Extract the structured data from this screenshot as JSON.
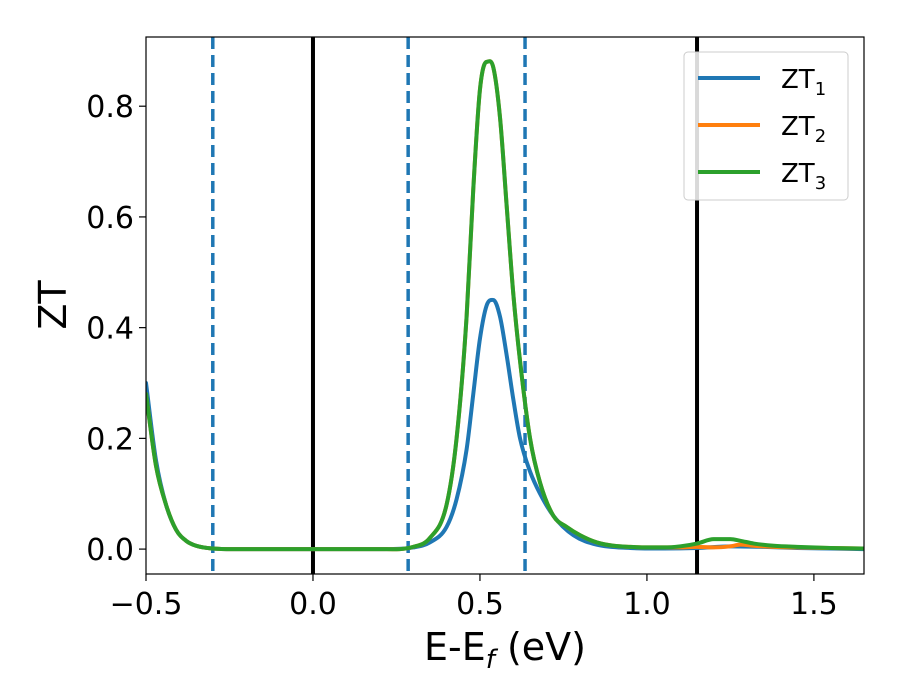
{
  "chart_data": {
    "type": "line",
    "xlabel": "E-E",
    "xlabel_sub": "f",
    "xlabel_unit": " (eV)",
    "ylabel": "ZT",
    "xlim": [
      -0.5,
      1.65
    ],
    "ylim": [
      -0.045,
      0.925
    ],
    "xticks": [
      -0.5,
      0.0,
      0.5,
      1.0,
      1.5
    ],
    "xtick_labels": [
      "−0.5",
      "0.0",
      "0.5",
      "1.0",
      "1.5"
    ],
    "yticks": [
      0.0,
      0.2,
      0.4,
      0.6,
      0.8
    ],
    "ytick_labels": [
      "0.0",
      "0.2",
      "0.4",
      "0.6",
      "0.8"
    ],
    "grid": false,
    "legend_position": "top-right",
    "vlines": [
      {
        "x": -0.3,
        "style": "dashed",
        "color": "#1f77b4"
      },
      {
        "x": 0.0,
        "style": "solid",
        "color": "#000000"
      },
      {
        "x": 0.285,
        "style": "dashed",
        "color": "#1f77b4"
      },
      {
        "x": 0.635,
        "style": "dashed",
        "color": "#1f77b4"
      },
      {
        "x": 1.15,
        "style": "solid",
        "color": "#000000"
      }
    ],
    "series": [
      {
        "name": "ZT",
        "sub": "1",
        "color": "#1f77b4",
        "x": [
          -0.5,
          -0.47,
          -0.44,
          -0.41,
          -0.38,
          -0.35,
          -0.3,
          -0.2,
          0.0,
          0.2,
          0.3,
          0.35,
          0.4,
          0.43,
          0.46,
          0.48,
          0.5,
          0.52,
          0.54,
          0.56,
          0.58,
          0.6,
          0.62,
          0.65,
          0.68,
          0.72,
          0.78,
          0.85,
          0.95,
          1.05,
          1.15,
          1.25,
          1.35,
          1.45,
          1.55,
          1.65
        ],
        "values": [
          0.3,
          0.16,
          0.08,
          0.035,
          0.015,
          0.006,
          0.001,
          0.0,
          0.0,
          0.0,
          0.003,
          0.012,
          0.04,
          0.09,
          0.18,
          0.28,
          0.38,
          0.44,
          0.45,
          0.42,
          0.35,
          0.27,
          0.2,
          0.14,
          0.1,
          0.06,
          0.025,
          0.008,
          0.002,
          0.001,
          0.002,
          0.005,
          0.004,
          0.002,
          0.001,
          0.0
        ]
      },
      {
        "name": "ZT",
        "sub": "2",
        "color": "#ff7f0e",
        "x": [
          -0.5,
          -0.47,
          -0.44,
          -0.41,
          -0.38,
          -0.35,
          -0.3,
          -0.2,
          0.0,
          0.2,
          0.3,
          0.35,
          0.4,
          0.43,
          0.46,
          0.48,
          0.5,
          0.52,
          0.54,
          0.56,
          0.58,
          0.6,
          0.62,
          0.65,
          0.68,
          0.72,
          0.76,
          0.8,
          0.85,
          0.9,
          0.95,
          1.0,
          1.05,
          1.1,
          1.15,
          1.2,
          1.25,
          1.28,
          1.32,
          1.38,
          1.45,
          1.55,
          1.65
        ],
        "values": [
          0.28,
          0.15,
          0.08,
          0.035,
          0.015,
          0.006,
          0.001,
          0.0,
          0.0,
          0.0,
          0.004,
          0.02,
          0.08,
          0.2,
          0.42,
          0.65,
          0.83,
          0.88,
          0.87,
          0.78,
          0.62,
          0.46,
          0.34,
          0.2,
          0.12,
          0.06,
          0.04,
          0.025,
          0.012,
          0.006,
          0.004,
          0.003,
          0.003,
          0.003,
          0.004,
          0.003,
          0.005,
          0.008,
          0.006,
          0.004,
          0.003,
          0.002,
          0.001
        ]
      },
      {
        "name": "ZT",
        "sub": "3",
        "color": "#2ca02c",
        "x": [
          -0.5,
          -0.47,
          -0.44,
          -0.41,
          -0.38,
          -0.35,
          -0.3,
          -0.2,
          0.0,
          0.2,
          0.3,
          0.35,
          0.4,
          0.43,
          0.46,
          0.48,
          0.5,
          0.52,
          0.54,
          0.56,
          0.58,
          0.6,
          0.62,
          0.65,
          0.68,
          0.72,
          0.76,
          0.8,
          0.85,
          0.9,
          0.95,
          1.0,
          1.05,
          1.1,
          1.15,
          1.2,
          1.25,
          1.28,
          1.32,
          1.38,
          1.45,
          1.55,
          1.65
        ],
        "values": [
          0.28,
          0.15,
          0.08,
          0.035,
          0.015,
          0.006,
          0.001,
          0.0,
          0.0,
          0.0,
          0.004,
          0.02,
          0.08,
          0.2,
          0.42,
          0.65,
          0.83,
          0.88,
          0.87,
          0.78,
          0.62,
          0.46,
          0.34,
          0.2,
          0.12,
          0.06,
          0.04,
          0.025,
          0.012,
          0.006,
          0.004,
          0.003,
          0.003,
          0.005,
          0.01,
          0.018,
          0.018,
          0.015,
          0.01,
          0.006,
          0.004,
          0.002,
          0.001
        ]
      }
    ]
  }
}
